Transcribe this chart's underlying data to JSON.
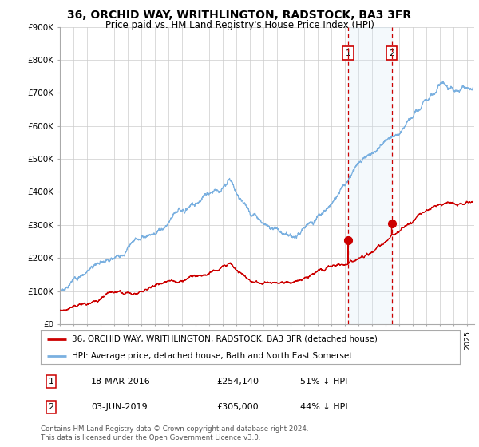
{
  "title": "36, ORCHID WAY, WRITHLINGTON, RADSTOCK, BA3 3FR",
  "subtitle": "Price paid vs. HM Land Registry's House Price Index (HPI)",
  "title_fontsize": 10,
  "subtitle_fontsize": 8.5,
  "ylim": [
    0,
    900000
  ],
  "yticks": [
    0,
    100000,
    200000,
    300000,
    400000,
    500000,
    600000,
    700000,
    800000,
    900000
  ],
  "ytick_labels": [
    "£0",
    "£100K",
    "£200K",
    "£300K",
    "£400K",
    "£500K",
    "£600K",
    "£700K",
    "£800K",
    "£900K"
  ],
  "xlim_start": 1995.0,
  "xlim_end": 2025.5,
  "hpi_color": "#7ab0e0",
  "hpi_fill_color": "#d6e8f7",
  "price_color": "#cc0000",
  "vline_color": "#cc0000",
  "transaction1_x": 2016.21,
  "transaction1_y": 254140,
  "transaction2_x": 2019.42,
  "transaction2_y": 305000,
  "legend_property": "36, ORCHID WAY, WRITHLINGTON, RADSTOCK, BA3 3FR (detached house)",
  "legend_hpi": "HPI: Average price, detached house, Bath and North East Somerset",
  "table_row1_num": "1",
  "table_row1_date": "18-MAR-2016",
  "table_row1_price": "£254,140",
  "table_row1_hpi": "51% ↓ HPI",
  "table_row2_num": "2",
  "table_row2_date": "03-JUN-2019",
  "table_row2_price": "£305,000",
  "table_row2_hpi": "44% ↓ HPI",
  "footnote": "Contains HM Land Registry data © Crown copyright and database right 2024.\nThis data is licensed under the Open Government Licence v3.0.",
  "background_color": "#ffffff",
  "plot_bg_color": "#ffffff",
  "grid_color": "#cccccc"
}
